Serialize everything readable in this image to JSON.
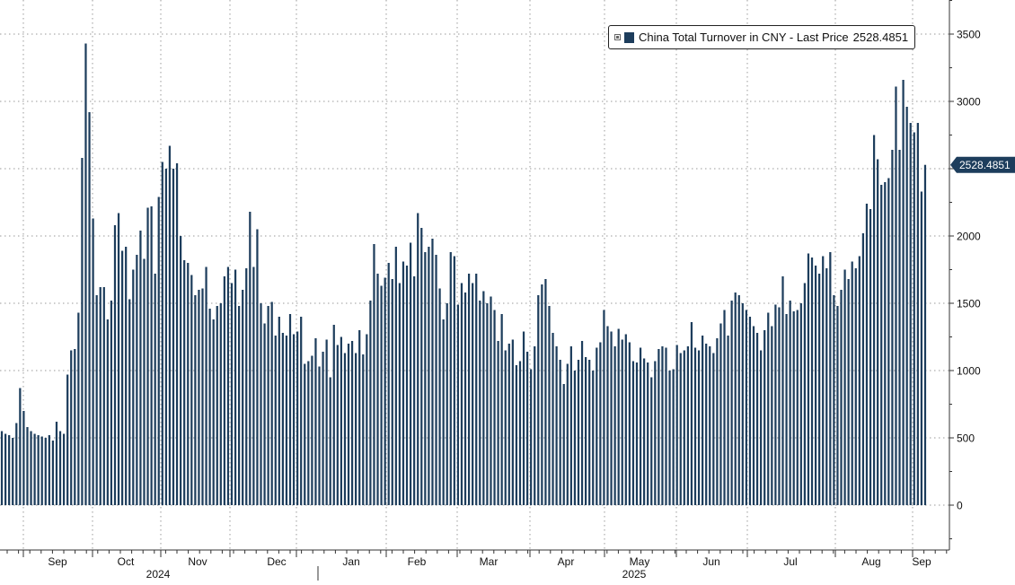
{
  "colors": {
    "bar": "#1d3d5c",
    "grid": "#9a9a9a",
    "axis": "#333333",
    "tag_bg": "#1d3d5c",
    "tag_text": "#ffffff"
  },
  "legend": {
    "series_label": "China Total Turnover in CNY - Last Price",
    "last_price": "2528.4851",
    "placement": "top-right"
  },
  "last_value_tag": "2528.4851",
  "chart_data": {
    "type": "bar",
    "title": "",
    "xlabel": "",
    "ylabel": "",
    "ylim": [
      -350,
      3750
    ],
    "grid": true,
    "y_ticks": [
      "3500",
      "3000",
      "2500",
      "2000",
      "1500",
      "1000",
      "500",
      "0"
    ],
    "month_labels": [
      "Sep",
      "Oct",
      "Nov",
      "Dec",
      "Jan",
      "Feb",
      "Mar",
      "Apr",
      "May",
      "Jun",
      "Jul",
      "Aug",
      "Sep"
    ],
    "year_labels": [
      "2024",
      "2025"
    ],
    "series": [
      {
        "name": "China Total Turnover in CNY",
        "values": [
          550,
          530,
          520,
          500,
          610,
          870,
          700,
          580,
          550,
          530,
          520,
          510,
          500,
          520,
          480,
          620,
          550,
          530,
          970,
          1150,
          1160,
          1430,
          2580,
          3430,
          2920,
          2130,
          1560,
          1620,
          1620,
          1380,
          1520,
          2080,
          2170,
          1890,
          1920,
          1530,
          1750,
          1860,
          2040,
          1830,
          2210,
          2220,
          1720,
          2290,
          2550,
          2500,
          2670,
          2500,
          2540,
          2000,
          1820,
          1800,
          1710,
          1560,
          1600,
          1610,
          1770,
          1460,
          1380,
          1480,
          1500,
          1700,
          1770,
          1650,
          1750,
          1480,
          1600,
          1760,
          2180,
          1770,
          2050,
          1500,
          1350,
          1480,
          1510,
          1260,
          1400,
          1280,
          1260,
          1420,
          1270,
          1290,
          1400,
          1050,
          1070,
          1110,
          1240,
          1030,
          1140,
          1230,
          950,
          1340,
          1190,
          1250,
          1130,
          1200,
          1220,
          1130,
          1300,
          1120,
          1270,
          1520,
          1940,
          1720,
          1630,
          1690,
          1800,
          1680,
          1920,
          1650,
          1810,
          1780,
          1950,
          1700,
          2170,
          2060,
          1880,
          1920,
          1980,
          1860,
          1610,
          1380,
          1500,
          1880,
          1850,
          1490,
          1650,
          1580,
          1720,
          1650,
          1720,
          1520,
          1590,
          1500,
          1550,
          1450,
          1220,
          1420,
          1150,
          1200,
          1230,
          1040,
          1070,
          1290,
          1140,
          1010,
          1180,
          1560,
          1640,
          1680,
          1480,
          1280,
          1180,
          1080,
          900,
          1050,
          1180,
          1000,
          1080,
          1220,
          1100,
          1080,
          1000,
          1170,
          1210,
          1450,
          1330,
          1290,
          1180,
          1310,
          1230,
          1270,
          1210,
          1070,
          1060,
          1170,
          1090,
          1060,
          950,
          1070,
          1160,
          1180,
          1170,
          1000,
          1010,
          1190,
          1130,
          1150,
          1180,
          1360,
          1170,
          1150,
          1260,
          1200,
          1180,
          1130,
          1240,
          1350,
          1450,
          1260,
          1520,
          1580,
          1560,
          1500,
          1450,
          1400,
          1330,
          1280,
          1150,
          1300,
          1430,
          1330,
          1490,
          1470,
          1700,
          1420,
          1520,
          1440,
          1450,
          1500,
          1650,
          1870,
          1840,
          1780,
          1720,
          1850,
          1760,
          1880,
          1560,
          1480,
          1600,
          1750,
          1680,
          1810,
          1760,
          1850,
          2020,
          2240,
          2200,
          2750,
          2570,
          2380,
          2400,
          2430,
          2640,
          3110,
          2640,
          3160,
          2960,
          2840,
          2770,
          2840,
          2330,
          2528.4851
        ]
      }
    ]
  }
}
